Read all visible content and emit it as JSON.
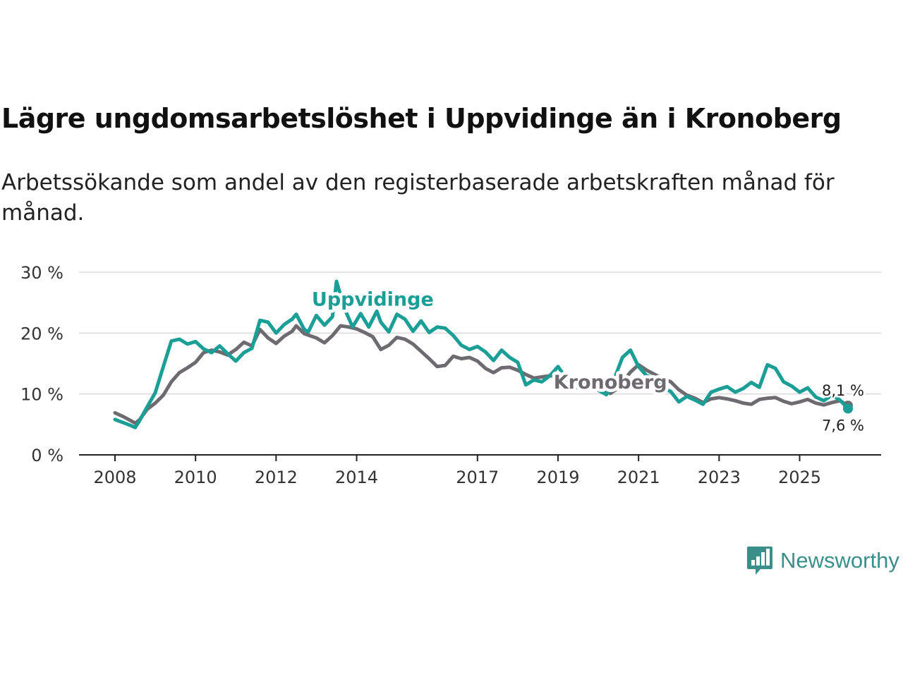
{
  "header": {
    "title": "Lägre ungdomsarbetslöshet i Uppvidinge än i Kronoberg",
    "subtitle": "Arbetssökande som andel av den registerbaserade arbetskraften månad för månad."
  },
  "brand": {
    "name": "Newsworthy",
    "color": "#3a8f8a"
  },
  "chart_data": {
    "type": "line",
    "title": "Lägre ungdomsarbetslöshet i Uppvidinge än i Kronoberg",
    "xlabel": "",
    "ylabel": "",
    "xlim": [
      2008,
      2026.2
    ],
    "ylim": [
      0,
      30
    ],
    "y_ticks": [
      0,
      10,
      20,
      30
    ],
    "y_tick_labels": [
      "0 %",
      "10 %",
      "20 %",
      "30 %"
    ],
    "x_ticks": [
      2008,
      2010,
      2012,
      2014,
      2017,
      2019,
      2021,
      2023,
      2025
    ],
    "x_tick_labels": [
      "2008",
      "2010",
      "2012",
      "2014",
      "2017",
      "2019",
      "2021",
      "2023",
      "2025"
    ],
    "grid": true,
    "series": [
      {
        "name": "Kronoberg",
        "color": "#6e6b70",
        "end_label": "8,1 %",
        "points": [
          [
            2008.0,
            6.9
          ],
          [
            2008.2,
            6.3
          ],
          [
            2008.4,
            5.6
          ],
          [
            2008.5,
            5.2
          ],
          [
            2008.6,
            5.7
          ],
          [
            2008.8,
            7.5
          ],
          [
            2009.0,
            8.5
          ],
          [
            2009.2,
            9.8
          ],
          [
            2009.4,
            12.0
          ],
          [
            2009.6,
            13.5
          ],
          [
            2009.8,
            14.3
          ],
          [
            2010.0,
            15.2
          ],
          [
            2010.2,
            16.8
          ],
          [
            2010.4,
            17.2
          ],
          [
            2010.6,
            16.9
          ],
          [
            2010.8,
            16.4
          ],
          [
            2011.0,
            17.3
          ],
          [
            2011.2,
            18.5
          ],
          [
            2011.4,
            17.9
          ],
          [
            2011.6,
            20.6
          ],
          [
            2011.8,
            19.2
          ],
          [
            2012.0,
            18.3
          ],
          [
            2012.2,
            19.5
          ],
          [
            2012.4,
            20.3
          ],
          [
            2012.5,
            21.2
          ],
          [
            2012.7,
            19.9
          ],
          [
            2013.0,
            19.2
          ],
          [
            2013.2,
            18.4
          ],
          [
            2013.4,
            19.6
          ],
          [
            2013.6,
            21.2
          ],
          [
            2013.8,
            21.0
          ],
          [
            2014.0,
            20.7
          ],
          [
            2014.2,
            20.1
          ],
          [
            2014.4,
            19.4
          ],
          [
            2014.6,
            17.3
          ],
          [
            2014.8,
            18.0
          ],
          [
            2015.0,
            19.3
          ],
          [
            2015.2,
            19.0
          ],
          [
            2015.4,
            18.2
          ],
          [
            2015.6,
            17.0
          ],
          [
            2015.8,
            15.8
          ],
          [
            2016.0,
            14.5
          ],
          [
            2016.2,
            14.7
          ],
          [
            2016.4,
            16.2
          ],
          [
            2016.6,
            15.8
          ],
          [
            2016.8,
            16.0
          ],
          [
            2017.0,
            15.4
          ],
          [
            2017.2,
            14.2
          ],
          [
            2017.4,
            13.5
          ],
          [
            2017.6,
            14.3
          ],
          [
            2017.8,
            14.4
          ],
          [
            2018.0,
            13.9
          ],
          [
            2018.2,
            13.2
          ],
          [
            2018.4,
            12.6
          ],
          [
            2018.6,
            12.8
          ],
          [
            2018.8,
            13.0
          ],
          [
            2019.0,
            12.9
          ],
          [
            2019.2,
            11.5
          ],
          [
            2019.4,
            12.0
          ],
          [
            2019.6,
            12.3
          ],
          [
            2019.8,
            11.8
          ],
          [
            2020.0,
            11.2
          ],
          [
            2020.2,
            10.5
          ],
          [
            2020.3,
            10.1
          ],
          [
            2020.5,
            11.0
          ],
          [
            2020.8,
            13.6
          ],
          [
            2021.0,
            14.8
          ],
          [
            2021.2,
            13.9
          ],
          [
            2021.4,
            13.2
          ],
          [
            2021.6,
            12.5
          ],
          [
            2021.8,
            12.0
          ],
          [
            2022.0,
            10.7
          ],
          [
            2022.2,
            9.8
          ],
          [
            2022.4,
            9.3
          ],
          [
            2022.6,
            8.6
          ],
          [
            2022.8,
            9.2
          ],
          [
            2023.0,
            9.4
          ],
          [
            2023.2,
            9.2
          ],
          [
            2023.4,
            8.9
          ],
          [
            2023.6,
            8.5
          ],
          [
            2023.8,
            8.3
          ],
          [
            2024.0,
            9.1
          ],
          [
            2024.2,
            9.3
          ],
          [
            2024.4,
            9.4
          ],
          [
            2024.6,
            8.8
          ],
          [
            2024.8,
            8.4
          ],
          [
            2025.0,
            8.7
          ],
          [
            2025.2,
            9.1
          ],
          [
            2025.4,
            8.5
          ],
          [
            2025.6,
            8.2
          ],
          [
            2025.8,
            8.6
          ],
          [
            2026.0,
            8.9
          ],
          [
            2026.2,
            8.1
          ]
        ]
      },
      {
        "name": "Uppvidinge",
        "color": "#1a9e96",
        "end_label": "7,6 %",
        "points": [
          [
            2008.0,
            5.8
          ],
          [
            2008.2,
            5.3
          ],
          [
            2008.4,
            4.8
          ],
          [
            2008.5,
            4.5
          ],
          [
            2008.6,
            5.5
          ],
          [
            2008.8,
            7.9
          ],
          [
            2009.0,
            10.2
          ],
          [
            2009.2,
            14.5
          ],
          [
            2009.4,
            18.7
          ],
          [
            2009.6,
            19.0
          ],
          [
            2009.8,
            18.2
          ],
          [
            2010.0,
            18.6
          ],
          [
            2010.2,
            17.4
          ],
          [
            2010.4,
            16.8
          ],
          [
            2010.6,
            17.9
          ],
          [
            2010.8,
            16.6
          ],
          [
            2011.0,
            15.4
          ],
          [
            2011.2,
            16.8
          ],
          [
            2011.4,
            17.5
          ],
          [
            2011.6,
            22.1
          ],
          [
            2011.8,
            21.8
          ],
          [
            2012.0,
            20.0
          ],
          [
            2012.2,
            21.4
          ],
          [
            2012.4,
            22.3
          ],
          [
            2012.5,
            23.1
          ],
          [
            2012.7,
            20.6
          ],
          [
            2012.8,
            20.2
          ],
          [
            2013.0,
            22.9
          ],
          [
            2013.2,
            21.3
          ],
          [
            2013.4,
            22.7
          ],
          [
            2013.5,
            28.5
          ],
          [
            2013.7,
            24.0
          ],
          [
            2013.9,
            21.0
          ],
          [
            2014.1,
            23.2
          ],
          [
            2014.3,
            21.0
          ],
          [
            2014.5,
            23.6
          ],
          [
            2014.6,
            21.8
          ],
          [
            2014.8,
            20.2
          ],
          [
            2015.0,
            23.1
          ],
          [
            2015.2,
            22.3
          ],
          [
            2015.4,
            20.3
          ],
          [
            2015.6,
            22.0
          ],
          [
            2015.8,
            20.1
          ],
          [
            2016.0,
            21.0
          ],
          [
            2016.2,
            20.8
          ],
          [
            2016.4,
            19.6
          ],
          [
            2016.6,
            18.0
          ],
          [
            2016.8,
            17.3
          ],
          [
            2017.0,
            17.8
          ],
          [
            2017.2,
            16.9
          ],
          [
            2017.4,
            15.5
          ],
          [
            2017.6,
            17.2
          ],
          [
            2017.8,
            16.0
          ],
          [
            2018.0,
            15.2
          ],
          [
            2018.2,
            11.5
          ],
          [
            2018.4,
            12.3
          ],
          [
            2018.6,
            12.0
          ],
          [
            2018.8,
            13.0
          ],
          [
            2019.0,
            14.5
          ],
          [
            2019.2,
            12.6
          ],
          [
            2019.4,
            10.8
          ],
          [
            2019.6,
            11.9
          ],
          [
            2019.8,
            11.2
          ],
          [
            2020.0,
            10.6
          ],
          [
            2020.2,
            9.9
          ],
          [
            2020.3,
            10.8
          ],
          [
            2020.6,
            16.0
          ],
          [
            2020.8,
            17.2
          ],
          [
            2021.0,
            14.5
          ],
          [
            2021.2,
            13.0
          ],
          [
            2021.4,
            12.6
          ],
          [
            2021.6,
            11.0
          ],
          [
            2021.8,
            10.4
          ],
          [
            2022.0,
            8.7
          ],
          [
            2022.2,
            9.6
          ],
          [
            2022.4,
            9.0
          ],
          [
            2022.6,
            8.3
          ],
          [
            2022.8,
            10.3
          ],
          [
            2023.0,
            10.8
          ],
          [
            2023.2,
            11.2
          ],
          [
            2023.4,
            10.3
          ],
          [
            2023.6,
            10.9
          ],
          [
            2023.8,
            11.9
          ],
          [
            2024.0,
            11.1
          ],
          [
            2024.2,
            14.8
          ],
          [
            2024.4,
            14.2
          ],
          [
            2024.6,
            12.0
          ],
          [
            2024.8,
            11.3
          ],
          [
            2025.0,
            10.3
          ],
          [
            2025.2,
            11.0
          ],
          [
            2025.4,
            9.5
          ],
          [
            2025.6,
            8.9
          ],
          [
            2025.8,
            9.8
          ],
          [
            2026.0,
            9.0
          ],
          [
            2026.2,
            7.6
          ]
        ]
      }
    ],
    "annotations": [
      {
        "text": "Uppvidinge",
        "series": "Uppvidinge",
        "x": 2014.4,
        "y": 24.5
      },
      {
        "text": "Kronoberg",
        "series": "Kronoberg",
        "x": 2020.3,
        "y": 10.9
      }
    ]
  }
}
